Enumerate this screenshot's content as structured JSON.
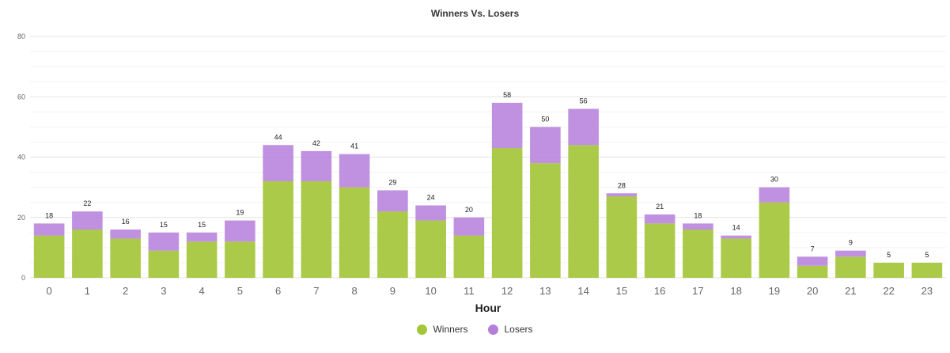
{
  "colors": {
    "winners": "#a4c639",
    "losers": "#b57edc",
    "grid": "#e6e6e6",
    "axis_text": "#666666"
  },
  "chart_data": {
    "type": "bar",
    "stacked": true,
    "title": "Winners Vs. Losers",
    "xlabel": "Hour",
    "ylabel": "",
    "ylim": [
      0,
      80
    ],
    "yticks": [
      0,
      20,
      40,
      60,
      80
    ],
    "grid": true,
    "legend_position": "bottom-center",
    "categories": [
      "0",
      "1",
      "2",
      "3",
      "4",
      "5",
      "6",
      "7",
      "8",
      "9",
      "10",
      "11",
      "12",
      "13",
      "14",
      "15",
      "16",
      "17",
      "18",
      "19",
      "20",
      "21",
      "22",
      "23"
    ],
    "series": [
      {
        "name": "Winners",
        "values": [
          14,
          16,
          13,
          9,
          12,
          12,
          32,
          32,
          30,
          22,
          19,
          14,
          43,
          38,
          44,
          27,
          18,
          16,
          13,
          25,
          4,
          7,
          5,
          5
        ]
      },
      {
        "name": "Losers",
        "values": [
          4,
          6,
          3,
          6,
          3,
          7,
          12,
          10,
          11,
          7,
          5,
          6,
          15,
          12,
          12,
          1,
          3,
          2,
          1,
          5,
          3,
          2,
          0,
          0
        ]
      }
    ],
    "totals": [
      18,
      22,
      16,
      15,
      15,
      19,
      44,
      42,
      41,
      29,
      24,
      20,
      58,
      50,
      56,
      28,
      21,
      18,
      14,
      30,
      7,
      9,
      5,
      5
    ]
  }
}
